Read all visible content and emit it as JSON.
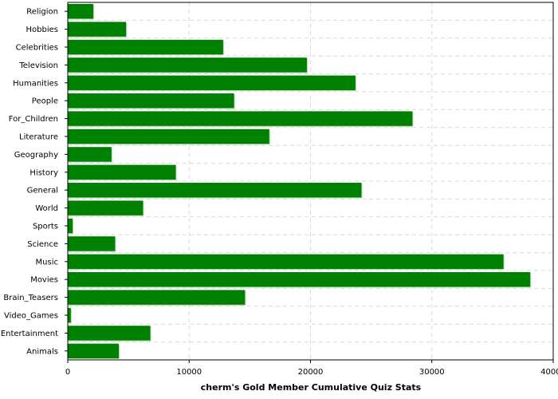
{
  "chart_data": {
    "type": "bar",
    "orientation": "horizontal",
    "categories": [
      "Religion",
      "Hobbies",
      "Celebrities",
      "Television",
      "Humanities",
      "People",
      "For_Children",
      "Literature",
      "Geography",
      "History",
      "General",
      "World",
      "Sports",
      "Science",
      "Music",
      "Movies",
      "Brain_Teasers",
      "Video_Games",
      "Entertainment",
      "Animals"
    ],
    "values": [
      2100,
      4800,
      12800,
      19700,
      23700,
      13700,
      28400,
      16600,
      3600,
      8900,
      24200,
      6200,
      400,
      3900,
      35900,
      38100,
      14600,
      250,
      6800,
      4200
    ],
    "xlabel": "cherm's Gold Member Cumulative Quiz Stats",
    "ylabel": "",
    "xlim": [
      0,
      40000
    ],
    "xticks": [
      0,
      10000,
      20000,
      30000,
      40000
    ],
    "grid": true,
    "colors": {
      "bar": "#008000",
      "bar_shadow": "#a8d8a8",
      "grid": "#d9d9d9",
      "axis": "#000000"
    }
  }
}
